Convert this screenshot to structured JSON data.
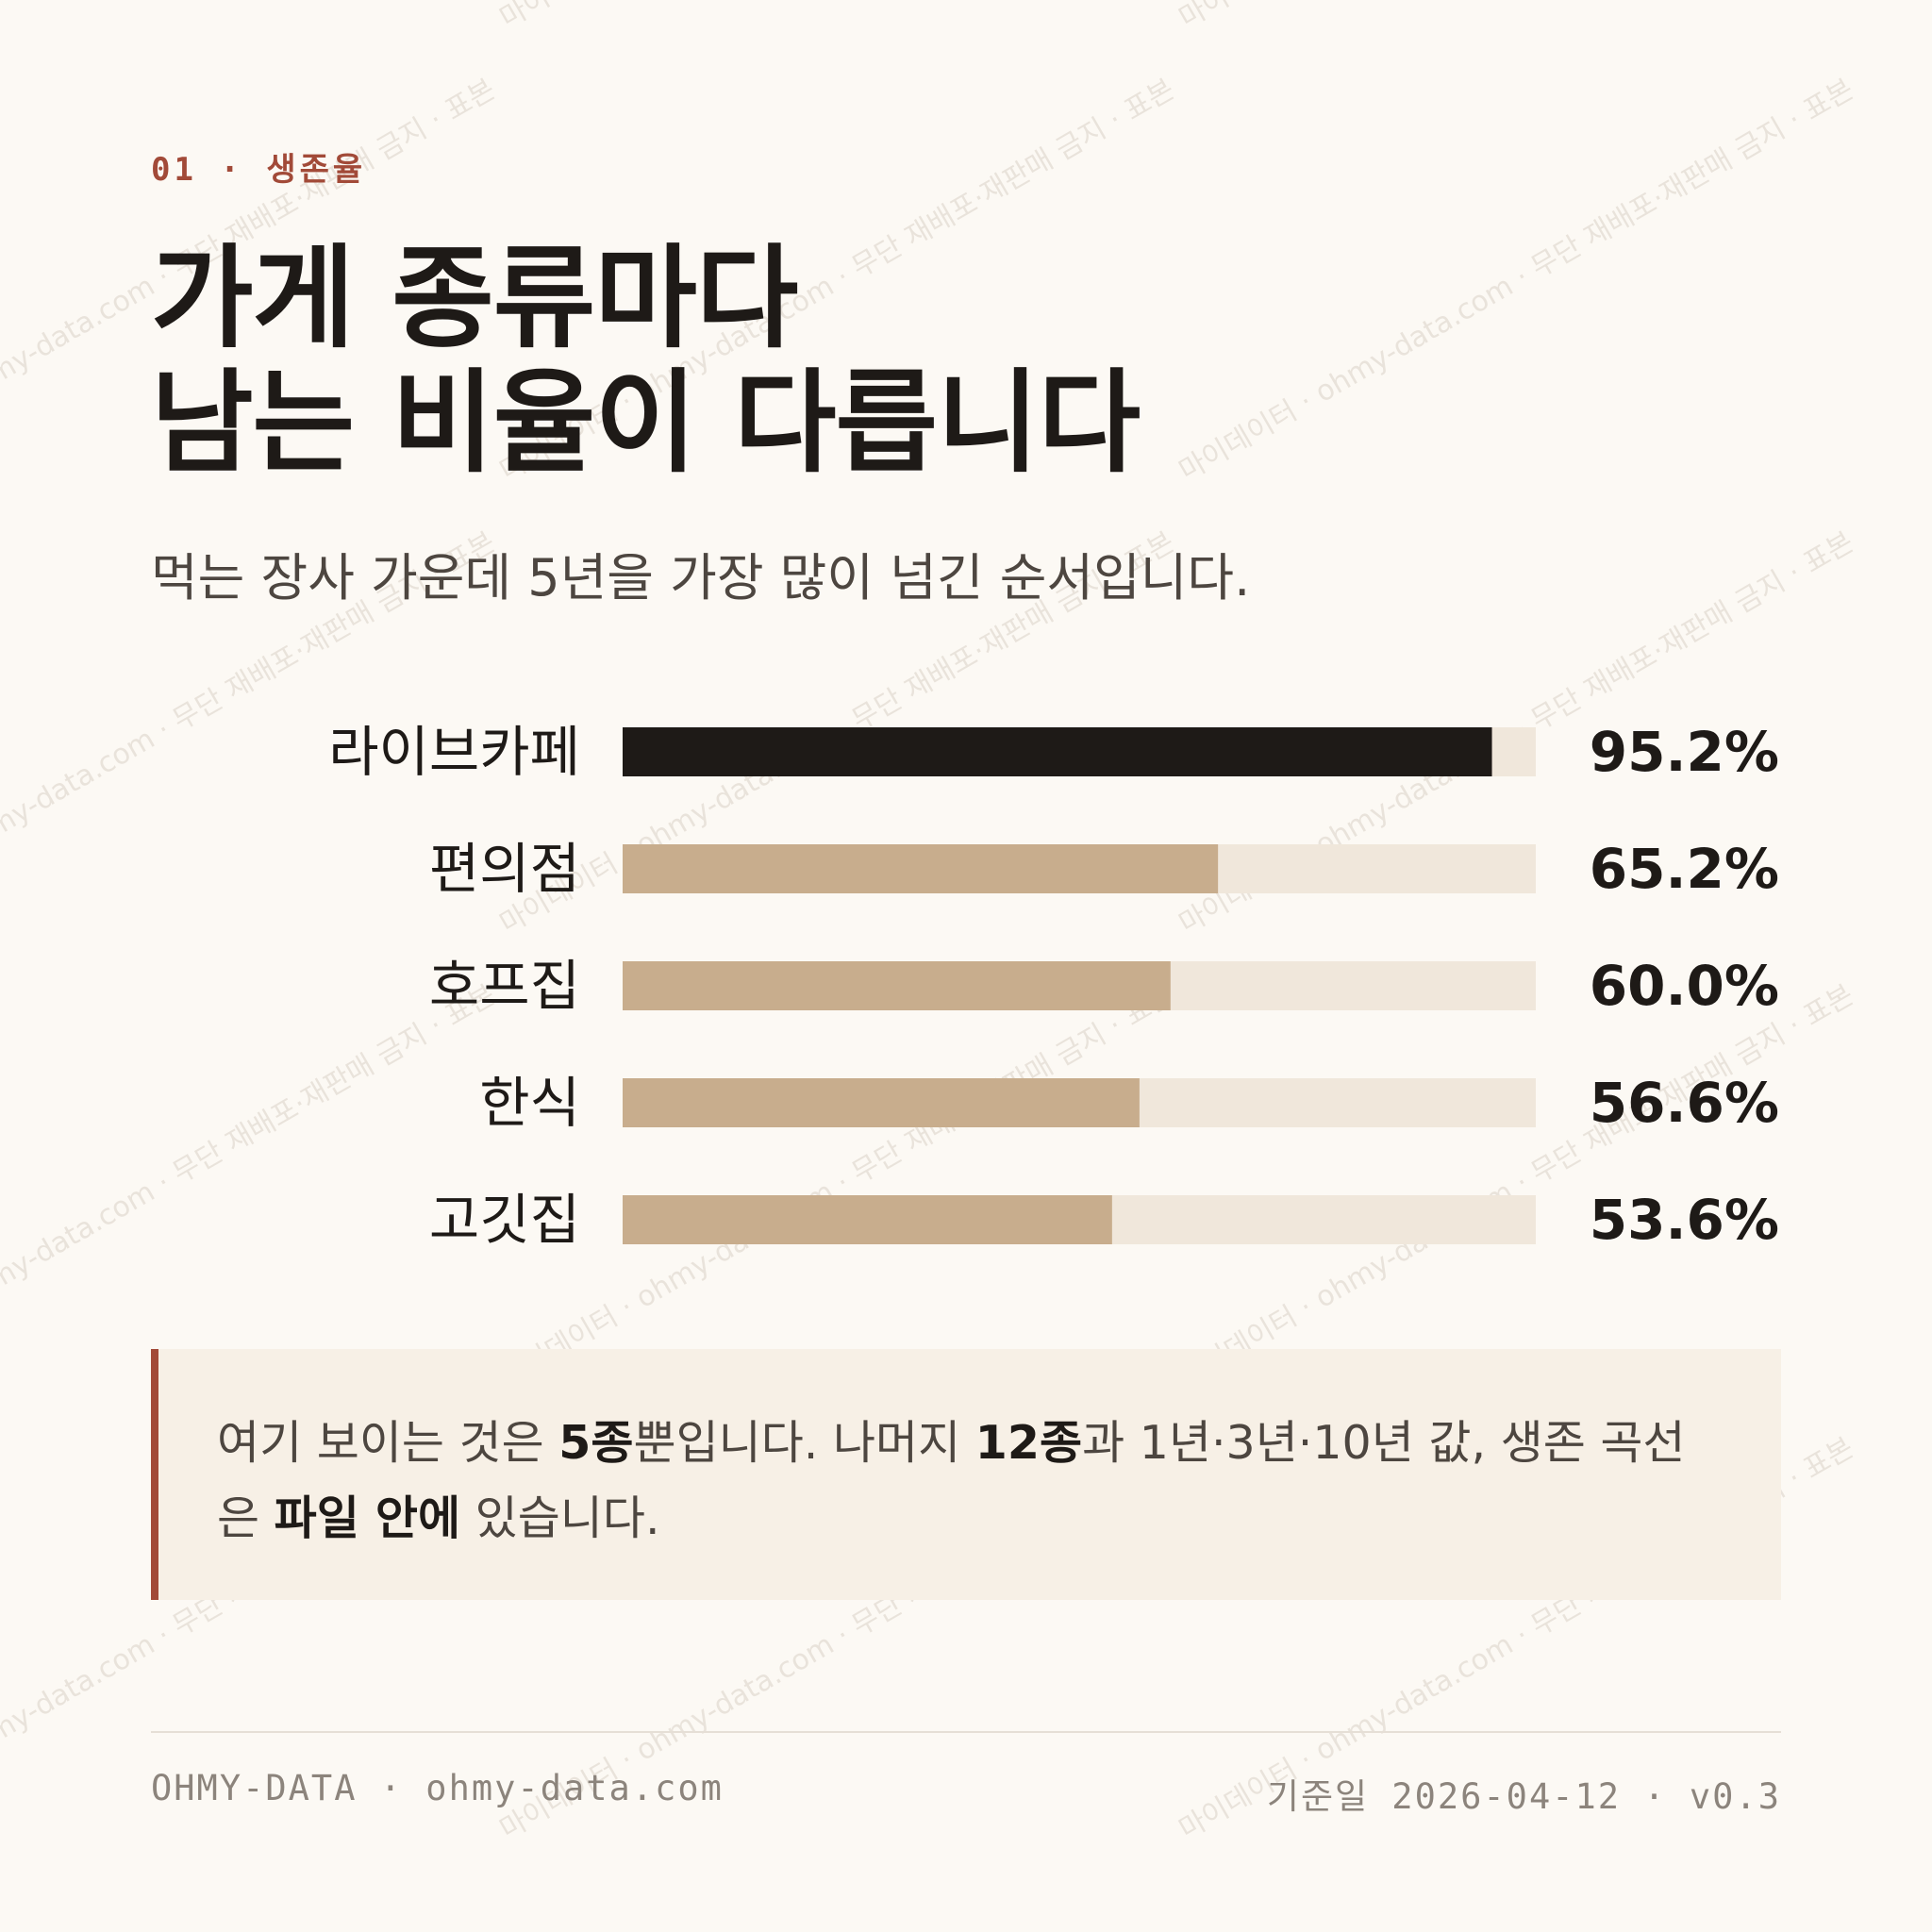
{
  "header": {
    "eyebrow": "01 · 생존율",
    "title_line1": "가게 종류마다",
    "title_line2": "남는 비율이 다릅니다",
    "subtitle": "먹는 장사 가운데 5년을 가장 많이 넘긴 순서입니다."
  },
  "chart_data": {
    "type": "bar",
    "orientation": "horizontal",
    "categories": [
      "라이브카페",
      "편의점",
      "호프집",
      "한식",
      "고깃집"
    ],
    "values": [
      95.2,
      65.2,
      60.0,
      56.6,
      53.6
    ],
    "value_labels": [
      "95.2%",
      "65.2%",
      "60.0%",
      "56.6%",
      "53.6%"
    ],
    "xlim": [
      0,
      100
    ],
    "highlight_index": 0,
    "colors": {
      "highlight": "#1e1a17",
      "bar": "#c8ad8d",
      "track": "#f0e7db"
    }
  },
  "note": {
    "p1": "여기 보이는 것은 ",
    "b1": "5종",
    "p2": "뿐입니다. 나머지 ",
    "b2": "12종",
    "p3": "과 1년·3년·10년 값, 생존 곡선은 ",
    "b3": "파일 안에",
    "p4": " 있습니다."
  },
  "footer": {
    "left": "OHMY-DATA · ohmy-data.com",
    "right": "기준일 2026-04-12 · v0.3"
  },
  "watermark": {
    "text": "마이데이터 · ohmy-data.com · 무단 재배포·재판매 금지 · 표본"
  }
}
